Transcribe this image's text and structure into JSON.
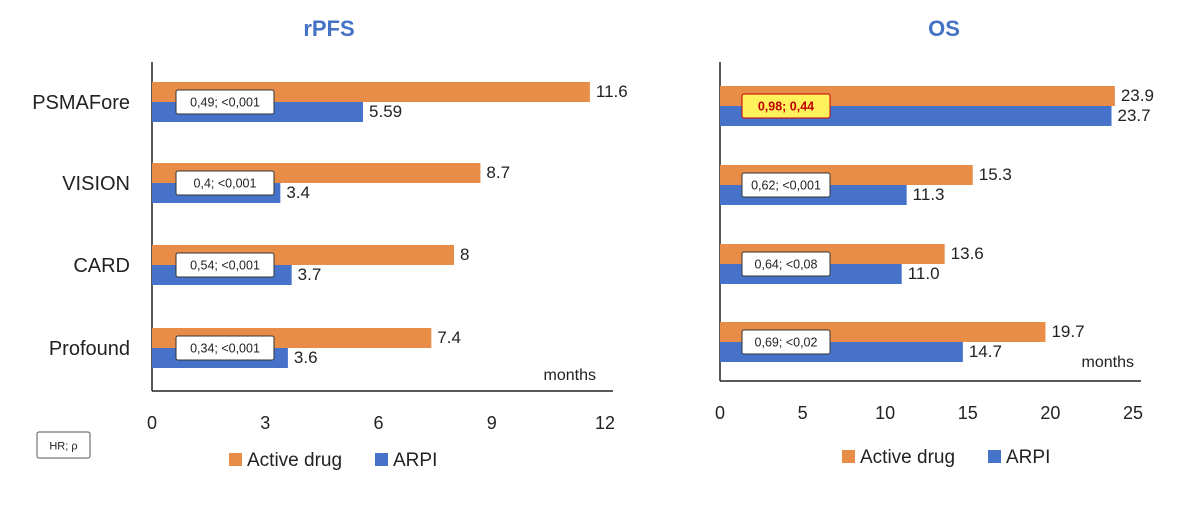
{
  "colors": {
    "active": "#E88D47",
    "arpi": "#4673C9",
    "title": "#4472C4",
    "highlight_bg": "#FFF15C",
    "highlight_text": "#C00000"
  },
  "key_box": {
    "label": "HR; ρ"
  },
  "chart_data": [
    {
      "type": "bar",
      "orientation": "horizontal",
      "title": "rPFS",
      "unit_label": "months",
      "categories": [
        "PSMAFore",
        "VISION",
        "CARD",
        "Profound"
      ],
      "series": [
        {
          "name": "Active drug",
          "values": [
            11.6,
            8.7,
            8,
            7.4
          ],
          "labels": [
            "11.6",
            "8.7",
            "8",
            "7.4"
          ]
        },
        {
          "name": "ARPI",
          "values": [
            5.59,
            3.4,
            3.7,
            3.6
          ],
          "labels": [
            "5.59",
            "3.4",
            "3.7",
            "3.6"
          ]
        }
      ],
      "annotations": [
        "0,49; <0,001",
        "0,4; <0,001",
        "0,54; <0,001",
        "0,34; <0,001"
      ],
      "highlighted": [],
      "xlim": [
        0,
        12
      ],
      "xticks": [
        0,
        3,
        6,
        9,
        12
      ],
      "legend": [
        "Active drug",
        "ARPI"
      ],
      "legend_position": "bottom"
    },
    {
      "type": "bar",
      "orientation": "horizontal",
      "title": "OS",
      "unit_label": "months",
      "categories": [
        "PSMAFore",
        "VISION",
        "CARD",
        "Profound"
      ],
      "series": [
        {
          "name": "Active drug",
          "values": [
            23.9,
            15.3,
            13.6,
            19.7
          ],
          "labels": [
            "23.9",
            "15.3",
            "13.6",
            "19.7"
          ]
        },
        {
          "name": "ARPI",
          "values": [
            23.7,
            11.3,
            11.0,
            14.7
          ],
          "labels": [
            "23.7",
            "11.3",
            "11.0",
            "14.7"
          ]
        }
      ],
      "annotations": [
        "0,98; 0,44",
        "0,62; <0,001",
        "0,64; <0,08",
        "0,69; <0,02"
      ],
      "highlighted": [
        0
      ],
      "xlim": [
        0,
        25
      ],
      "xticks": [
        0,
        5,
        10,
        15,
        20,
        25
      ],
      "legend": [
        "Active drug",
        "ARPI"
      ],
      "legend_position": "bottom"
    }
  ]
}
